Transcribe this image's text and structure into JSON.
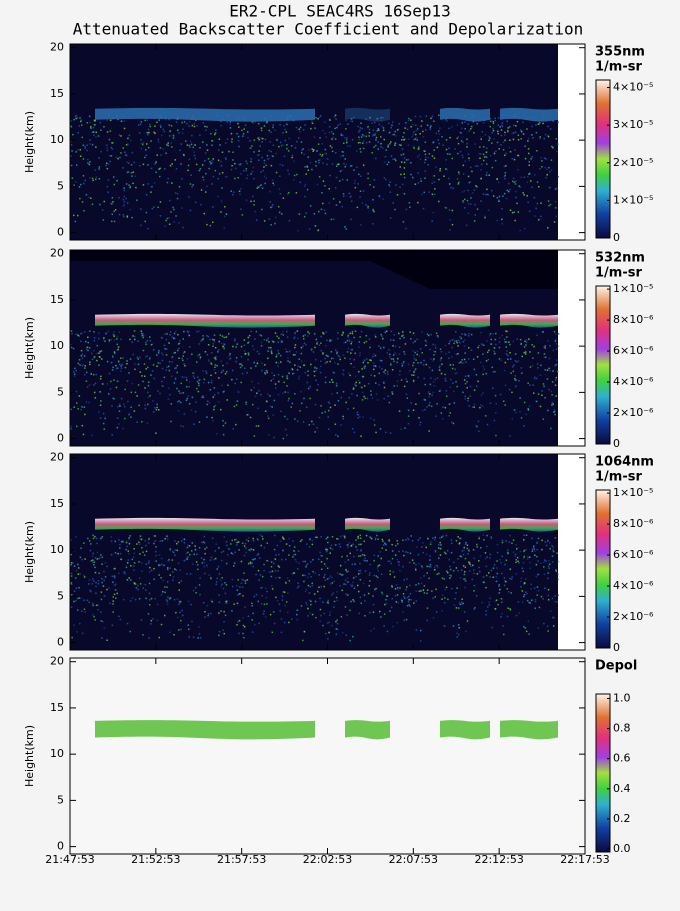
{
  "header": {
    "title": "ER2-CPL SEAC4RS 16Sep13",
    "subtitle": "Attenuated Backscatter Coefficient and Depolarization"
  },
  "chart_data": [
    {
      "type": "heatmap",
      "ylabel": "Height(km)",
      "ylim": [
        -0.8,
        20.4
      ],
      "yticks": [
        0,
        5,
        10,
        15,
        20
      ],
      "colorbar": {
        "label": "355nm",
        "units": "1/m-sr",
        "lim": [
          0,
          4.2e-05
        ],
        "ticks": [
          0,
          {
            "value": 1e-05,
            "label": "1×10⁻⁵"
          },
          {
            "value": 2e-05,
            "label": "2×10⁻⁵"
          },
          {
            "value": 3e-05,
            "label": "3×10⁻⁵"
          },
          {
            "value": 4e-05,
            "label": "4×10⁻⁵"
          }
        ]
      }
    },
    {
      "type": "heatmap",
      "ylabel": "Height(km)",
      "ylim": [
        -0.8,
        20.4
      ],
      "yticks": [
        0,
        5,
        10,
        15,
        20
      ],
      "colorbar": {
        "label": "532nm",
        "units": "1/m-sr",
        "lim": [
          0,
          1.02e-05
        ],
        "ticks": [
          0,
          {
            "value": 2e-06,
            "label": "2×10⁻⁶"
          },
          {
            "value": 4e-06,
            "label": "4×10⁻⁶"
          },
          {
            "value": 6e-06,
            "label": "6×10⁻⁶"
          },
          {
            "value": 8e-06,
            "label": "8×10⁻⁶"
          },
          {
            "value": 1e-05,
            "label": "1×10⁻⁵"
          }
        ]
      }
    },
    {
      "type": "heatmap",
      "ylabel": "Height(km)",
      "ylim": [
        -0.8,
        20.4
      ],
      "yticks": [
        0,
        5,
        10,
        15,
        20
      ],
      "colorbar": {
        "label": "1064nm",
        "units": "1/m-sr",
        "lim": [
          0,
          1.02e-05
        ],
        "ticks": [
          0,
          {
            "value": 2e-06,
            "label": "2×10⁻⁶"
          },
          {
            "value": 4e-06,
            "label": "4×10⁻⁶"
          },
          {
            "value": 6e-06,
            "label": "6×10⁻⁶"
          },
          {
            "value": 8e-06,
            "label": "8×10⁻⁶"
          },
          {
            "value": 1e-05,
            "label": "1×10⁻⁵"
          }
        ]
      }
    },
    {
      "type": "heatmap",
      "ylabel": "Height(km)",
      "ylim": [
        -0.8,
        20.4
      ],
      "yticks": [
        0,
        5,
        10,
        15,
        20
      ],
      "colorbar": {
        "label": "Depol",
        "lim": [
          -0.02,
          1.03
        ],
        "ticks": [
          {
            "value": 0,
            "label": "0.0"
          },
          0.2,
          0.4,
          0.6,
          0.8,
          {
            "value": 1,
            "label": "1.0"
          }
        ]
      },
      "xticks": [
        "21:47:53",
        "21:52:53",
        "21:57:53",
        "22:02:53",
        "22:07:53",
        "22:12:53",
        "22:17:53"
      ]
    }
  ]
}
